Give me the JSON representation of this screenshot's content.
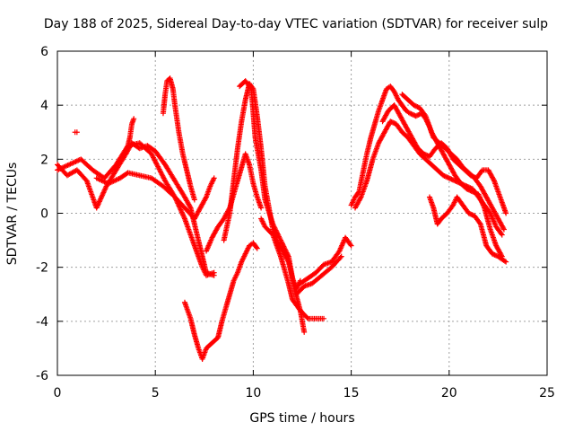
{
  "chart_data": {
    "type": "scatter",
    "title": "Day 188 of 2025, Sidereal Day-to-day VTEC variation (SDTVAR) for receiver sulp",
    "xlabel": "GPS time / hours",
    "ylabel": "SDTVAR / TECUs",
    "xlim": [
      0,
      25
    ],
    "ylim": [
      -6,
      6
    ],
    "xticks": [
      0,
      5,
      10,
      15,
      20,
      25
    ],
    "yticks": [
      -6,
      -4,
      -2,
      0,
      2,
      4,
      6
    ],
    "grid": true,
    "marker": "plus",
    "color": "#ff0000",
    "series": [
      {
        "name": "track-1",
        "points": [
          [
            0,
            1.8
          ],
          [
            0.5,
            1.4
          ],
          [
            1,
            1.6
          ],
          [
            1.5,
            1.2
          ],
          [
            2,
            0.2
          ],
          [
            2.5,
            1.0
          ],
          [
            3,
            1.6
          ],
          [
            3.5,
            2.2
          ],
          [
            3.8,
            2.6
          ],
          [
            4.2,
            2.4
          ],
          [
            4.6,
            2.5
          ],
          [
            5,
            2.3
          ],
          [
            5.5,
            1.8
          ],
          [
            6,
            1.2
          ],
          [
            6.5,
            0.6
          ],
          [
            6.8,
            0.2
          ],
          [
            7,
            -0.4
          ],
          [
            7.2,
            -1.0
          ],
          [
            7.4,
            -1.6
          ],
          [
            7.6,
            -2.2
          ],
          [
            8,
            -2.3
          ]
        ]
      },
      {
        "name": "track-2",
        "points": [
          [
            0,
            1.6
          ],
          [
            0.6,
            1.8
          ],
          [
            1.2,
            2.0
          ],
          [
            1.8,
            1.6
          ],
          [
            2.4,
            1.3
          ],
          [
            3,
            1.8
          ],
          [
            3.6,
            2.5
          ],
          [
            4.2,
            2.6
          ],
          [
            4.8,
            2.2
          ],
          [
            5.5,
            1.2
          ],
          [
            6,
            0.6
          ],
          [
            6.5,
            -0.2
          ],
          [
            7,
            -1.2
          ],
          [
            7.4,
            -2.0
          ],
          [
            7.6,
            -2.3
          ],
          [
            8,
            -2.2
          ]
        ]
      },
      {
        "name": "track-3",
        "points": [
          [
            2,
            1.3
          ],
          [
            2.6,
            1.1
          ],
          [
            3.2,
            1.3
          ],
          [
            3.6,
            1.5
          ],
          [
            4.2,
            1.4
          ],
          [
            4.8,
            1.3
          ],
          [
            5.4,
            1.0
          ],
          [
            6,
            0.6
          ],
          [
            6.5,
            0.2
          ],
          [
            7,
            -0.2
          ]
        ]
      },
      {
        "name": "track-4",
        "points": [
          [
            3.5,
            2.2
          ],
          [
            3.7,
            2.8
          ],
          [
            3.8,
            3.3
          ],
          [
            3.9,
            3.5
          ]
        ]
      },
      {
        "name": "track-5",
        "points": [
          [
            0.9,
            3.0
          ],
          [
            1.0,
            3.0
          ]
        ]
      },
      {
        "name": "track-6",
        "points": [
          [
            5.4,
            3.7
          ],
          [
            5.5,
            4.4
          ],
          [
            5.6,
            4.9
          ],
          [
            5.75,
            5.0
          ],
          [
            5.9,
            4.6
          ],
          [
            6.0,
            4.0
          ],
          [
            6.2,
            3.0
          ],
          [
            6.4,
            2.2
          ],
          [
            6.6,
            1.6
          ],
          [
            6.8,
            1.0
          ],
          [
            7.0,
            0.5
          ]
        ]
      },
      {
        "name": "track-7",
        "points": [
          [
            7.0,
            -0.2
          ],
          [
            7.3,
            0.2
          ],
          [
            7.6,
            0.6
          ],
          [
            7.8,
            1.0
          ],
          [
            8.0,
            1.3
          ]
        ]
      },
      {
        "name": "track-8",
        "points": [
          [
            7.6,
            -1.4
          ],
          [
            7.9,
            -0.9
          ],
          [
            8.2,
            -0.5
          ],
          [
            8.5,
            -0.2
          ],
          [
            8.8,
            0.2
          ],
          [
            9.0,
            0.7
          ],
          [
            9.2,
            1.2
          ],
          [
            9.4,
            1.7
          ],
          [
            9.6,
            2.2
          ],
          [
            9.8,
            1.8
          ],
          [
            10,
            1.1
          ],
          [
            10.2,
            0.6
          ],
          [
            10.4,
            0.2
          ]
        ]
      },
      {
        "name": "track-9",
        "points": [
          [
            6.5,
            -3.3
          ],
          [
            6.8,
            -3.9
          ],
          [
            7.0,
            -4.5
          ],
          [
            7.2,
            -5.0
          ],
          [
            7.4,
            -5.4
          ],
          [
            7.6,
            -5.0
          ],
          [
            7.9,
            -4.8
          ],
          [
            8.2,
            -4.6
          ],
          [
            8.4,
            -4.0
          ],
          [
            8.6,
            -3.5
          ],
          [
            8.8,
            -3.0
          ],
          [
            9.0,
            -2.5
          ],
          [
            9.2,
            -2.2
          ],
          [
            9.4,
            -1.8
          ],
          [
            9.6,
            -1.5
          ],
          [
            9.8,
            -1.2
          ],
          [
            10,
            -1.1
          ],
          [
            10.2,
            -1.3
          ]
        ]
      },
      {
        "name": "track-10",
        "points": [
          [
            8.5,
            -1.0
          ],
          [
            8.8,
            0.0
          ],
          [
            9.0,
            1.2
          ],
          [
            9.2,
            2.4
          ],
          [
            9.4,
            3.4
          ],
          [
            9.6,
            4.2
          ],
          [
            9.8,
            4.8
          ],
          [
            10,
            4.6
          ],
          [
            10.2,
            3.6
          ],
          [
            10.4,
            2.4
          ],
          [
            10.6,
            1.0
          ],
          [
            10.8,
            0.2
          ],
          [
            11,
            -0.6
          ],
          [
            11.2,
            -1.0
          ],
          [
            11.5,
            -1.4
          ],
          [
            11.8,
            -1.8
          ],
          [
            12,
            -2.4
          ],
          [
            12.2,
            -2.8
          ],
          [
            12.4,
            -2.5
          ]
        ]
      },
      {
        "name": "track-11",
        "points": [
          [
            9.3,
            4.7
          ],
          [
            9.6,
            4.9
          ],
          [
            9.9,
            4.6
          ],
          [
            10.1,
            2.8
          ],
          [
            10.4,
            1.6
          ],
          [
            10.6,
            0.5
          ],
          [
            11,
            -0.4
          ],
          [
            11.4,
            -1.0
          ],
          [
            11.8,
            -1.6
          ],
          [
            12.1,
            -2.8
          ],
          [
            12.4,
            -3.6
          ],
          [
            12.6,
            -4.4
          ]
        ]
      },
      {
        "name": "track-12",
        "points": [
          [
            10.4,
            -0.2
          ],
          [
            10.6,
            -0.5
          ],
          [
            11,
            -0.8
          ],
          [
            11.4,
            -1.6
          ],
          [
            11.8,
            -2.6
          ],
          [
            12,
            -3.2
          ],
          [
            12.4,
            -3.6
          ],
          [
            12.8,
            -3.9
          ],
          [
            13.2,
            -3.9
          ],
          [
            13.6,
            -3.9
          ]
        ]
      },
      {
        "name": "track-13",
        "points": [
          [
            12.4,
            -2.6
          ],
          [
            12.8,
            -2.4
          ],
          [
            13.2,
            -2.2
          ],
          [
            13.6,
            -1.9
          ],
          [
            14.0,
            -1.8
          ],
          [
            14.4,
            -1.4
          ],
          [
            14.7,
            -0.9
          ],
          [
            15.0,
            -1.2
          ]
        ]
      },
      {
        "name": "track-14",
        "points": [
          [
            12.2,
            -3.0
          ],
          [
            12.6,
            -2.7
          ],
          [
            13,
            -2.6
          ],
          [
            13.5,
            -2.3
          ],
          [
            14.0,
            -2.0
          ],
          [
            14.5,
            -1.6
          ]
        ]
      },
      {
        "name": "track-15",
        "points": [
          [
            15.0,
            0.3
          ],
          [
            15.2,
            0.6
          ],
          [
            15.4,
            0.8
          ],
          [
            15.6,
            1.5
          ],
          [
            15.8,
            2.2
          ],
          [
            16.0,
            2.8
          ],
          [
            16.2,
            3.3
          ],
          [
            16.4,
            3.8
          ],
          [
            16.6,
            4.2
          ],
          [
            16.8,
            4.6
          ],
          [
            17.0,
            4.7
          ],
          [
            17.2,
            4.5
          ],
          [
            17.4,
            4.2
          ],
          [
            17.6,
            4.0
          ],
          [
            17.8,
            3.8
          ],
          [
            18.0,
            3.7
          ],
          [
            18.3,
            3.6
          ],
          [
            18.6,
            3.7
          ],
          [
            18.8,
            3.5
          ],
          [
            19.0,
            3.2
          ],
          [
            19.2,
            2.8
          ],
          [
            19.5,
            2.6
          ],
          [
            19.8,
            2.4
          ],
          [
            20.1,
            2.2
          ],
          [
            20.4,
            2.0
          ],
          [
            20.7,
            1.7
          ],
          [
            21,
            1.5
          ],
          [
            21.3,
            1.3
          ],
          [
            21.6,
            1.0
          ],
          [
            21.9,
            0.6
          ],
          [
            22.2,
            0.2
          ],
          [
            22.5,
            -0.2
          ],
          [
            22.8,
            -0.6
          ]
        ]
      },
      {
        "name": "track-16",
        "points": [
          [
            15.2,
            0.2
          ],
          [
            15.5,
            0.6
          ],
          [
            15.8,
            1.2
          ],
          [
            16.1,
            2.0
          ],
          [
            16.4,
            2.6
          ],
          [
            16.7,
            3.0
          ],
          [
            17.0,
            3.4
          ],
          [
            17.3,
            3.3
          ],
          [
            17.6,
            3.0
          ],
          [
            17.9,
            2.8
          ],
          [
            18.2,
            2.5
          ],
          [
            18.5,
            2.2
          ],
          [
            18.8,
            2.0
          ],
          [
            19.1,
            1.8
          ],
          [
            19.4,
            1.6
          ],
          [
            19.7,
            1.4
          ],
          [
            20.0,
            1.3
          ],
          [
            20.3,
            1.2
          ],
          [
            20.6,
            1.1
          ],
          [
            20.9,
            1.0
          ],
          [
            21.2,
            0.9
          ],
          [
            21.5,
            0.6
          ],
          [
            21.8,
            0.3
          ],
          [
            22.1,
            0.0
          ],
          [
            22.4,
            -0.5
          ],
          [
            22.7,
            -0.8
          ]
        ]
      },
      {
        "name": "track-17",
        "points": [
          [
            16.6,
            3.4
          ],
          [
            16.9,
            3.8
          ],
          [
            17.2,
            4.0
          ],
          [
            17.5,
            3.6
          ],
          [
            17.8,
            3.2
          ],
          [
            18.1,
            2.8
          ],
          [
            18.4,
            2.4
          ],
          [
            18.7,
            2.2
          ],
          [
            19.0,
            2.1
          ],
          [
            19.3,
            2.4
          ],
          [
            19.6,
            2.6
          ],
          [
            19.9,
            2.4
          ],
          [
            20.2,
            2.0
          ],
          [
            20.5,
            1.8
          ],
          [
            20.8,
            1.6
          ],
          [
            21.1,
            1.4
          ],
          [
            21.4,
            1.3
          ],
          [
            21.7,
            1.6
          ],
          [
            22.0,
            1.6
          ],
          [
            22.3,
            1.2
          ],
          [
            22.6,
            0.6
          ],
          [
            22.9,
            0.0
          ]
        ]
      },
      {
        "name": "track-18",
        "points": [
          [
            19.0,
            0.6
          ],
          [
            19.2,
            0.2
          ],
          [
            19.4,
            -0.4
          ],
          [
            19.6,
            -0.2
          ],
          [
            19.9,
            0.0
          ],
          [
            20.2,
            0.3
          ],
          [
            20.4,
            0.6
          ],
          [
            20.7,
            0.3
          ],
          [
            21.0,
            0.0
          ],
          [
            21.3,
            -0.1
          ],
          [
            21.6,
            -0.4
          ],
          [
            21.9,
            -1.2
          ],
          [
            22.2,
            -1.5
          ],
          [
            22.5,
            -1.6
          ],
          [
            22.9,
            -1.8
          ]
        ]
      },
      {
        "name": "track-19",
        "points": [
          [
            17.6,
            4.4
          ],
          [
            17.9,
            4.2
          ],
          [
            18.2,
            4.0
          ],
          [
            18.5,
            3.9
          ],
          [
            18.8,
            3.6
          ],
          [
            19.1,
            3.0
          ],
          [
            19.4,
            2.6
          ],
          [
            19.7,
            2.2
          ],
          [
            20.0,
            1.8
          ],
          [
            20.3,
            1.4
          ],
          [
            20.6,
            1.1
          ],
          [
            20.9,
            0.9
          ],
          [
            21.2,
            0.8
          ],
          [
            21.5,
            0.7
          ],
          [
            21.8,
            0.2
          ],
          [
            22.1,
            -0.6
          ],
          [
            22.4,
            -1.2
          ],
          [
            22.7,
            -1.6
          ]
        ]
      }
    ]
  }
}
